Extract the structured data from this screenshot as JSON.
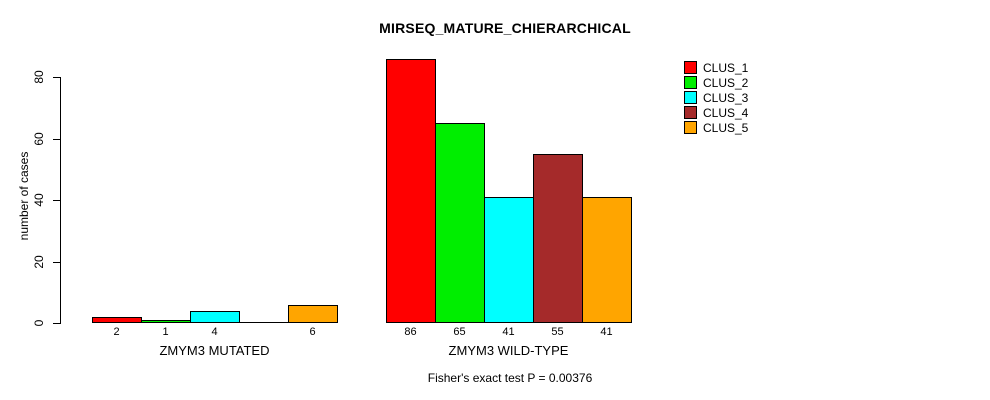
{
  "chart_data": {
    "type": "bar",
    "title": "MIRSEQ_MATURE_CHIERARCHICAL",
    "ylabel": "number of cases",
    "xlabel": "",
    "footer": "Fisher's exact test P = 0.00376",
    "ylim": [
      0,
      86
    ],
    "yticks": [
      0,
      20,
      40,
      60,
      80
    ],
    "grid": false,
    "legend_position": "top-right",
    "series": [
      {
        "name": "CLUS_1",
        "color": "#ff0000"
      },
      {
        "name": "CLUS_2",
        "color": "#00ee00"
      },
      {
        "name": "CLUS_3",
        "color": "#00ffff"
      },
      {
        "name": "CLUS_4",
        "color": "#a52a2a"
      },
      {
        "name": "CLUS_5",
        "color": "#ffa500"
      }
    ],
    "groups": [
      {
        "label": "ZMYM3 MUTATED",
        "values": [
          2,
          1,
          4,
          0,
          6
        ],
        "bar_labels": [
          "2",
          "1",
          "4",
          "",
          "6"
        ]
      },
      {
        "label": "ZMYM3 WILD-TYPE",
        "values": [
          86,
          65,
          41,
          55,
          41
        ],
        "bar_labels": [
          "86",
          "65",
          "41",
          "55",
          "41"
        ]
      }
    ]
  }
}
